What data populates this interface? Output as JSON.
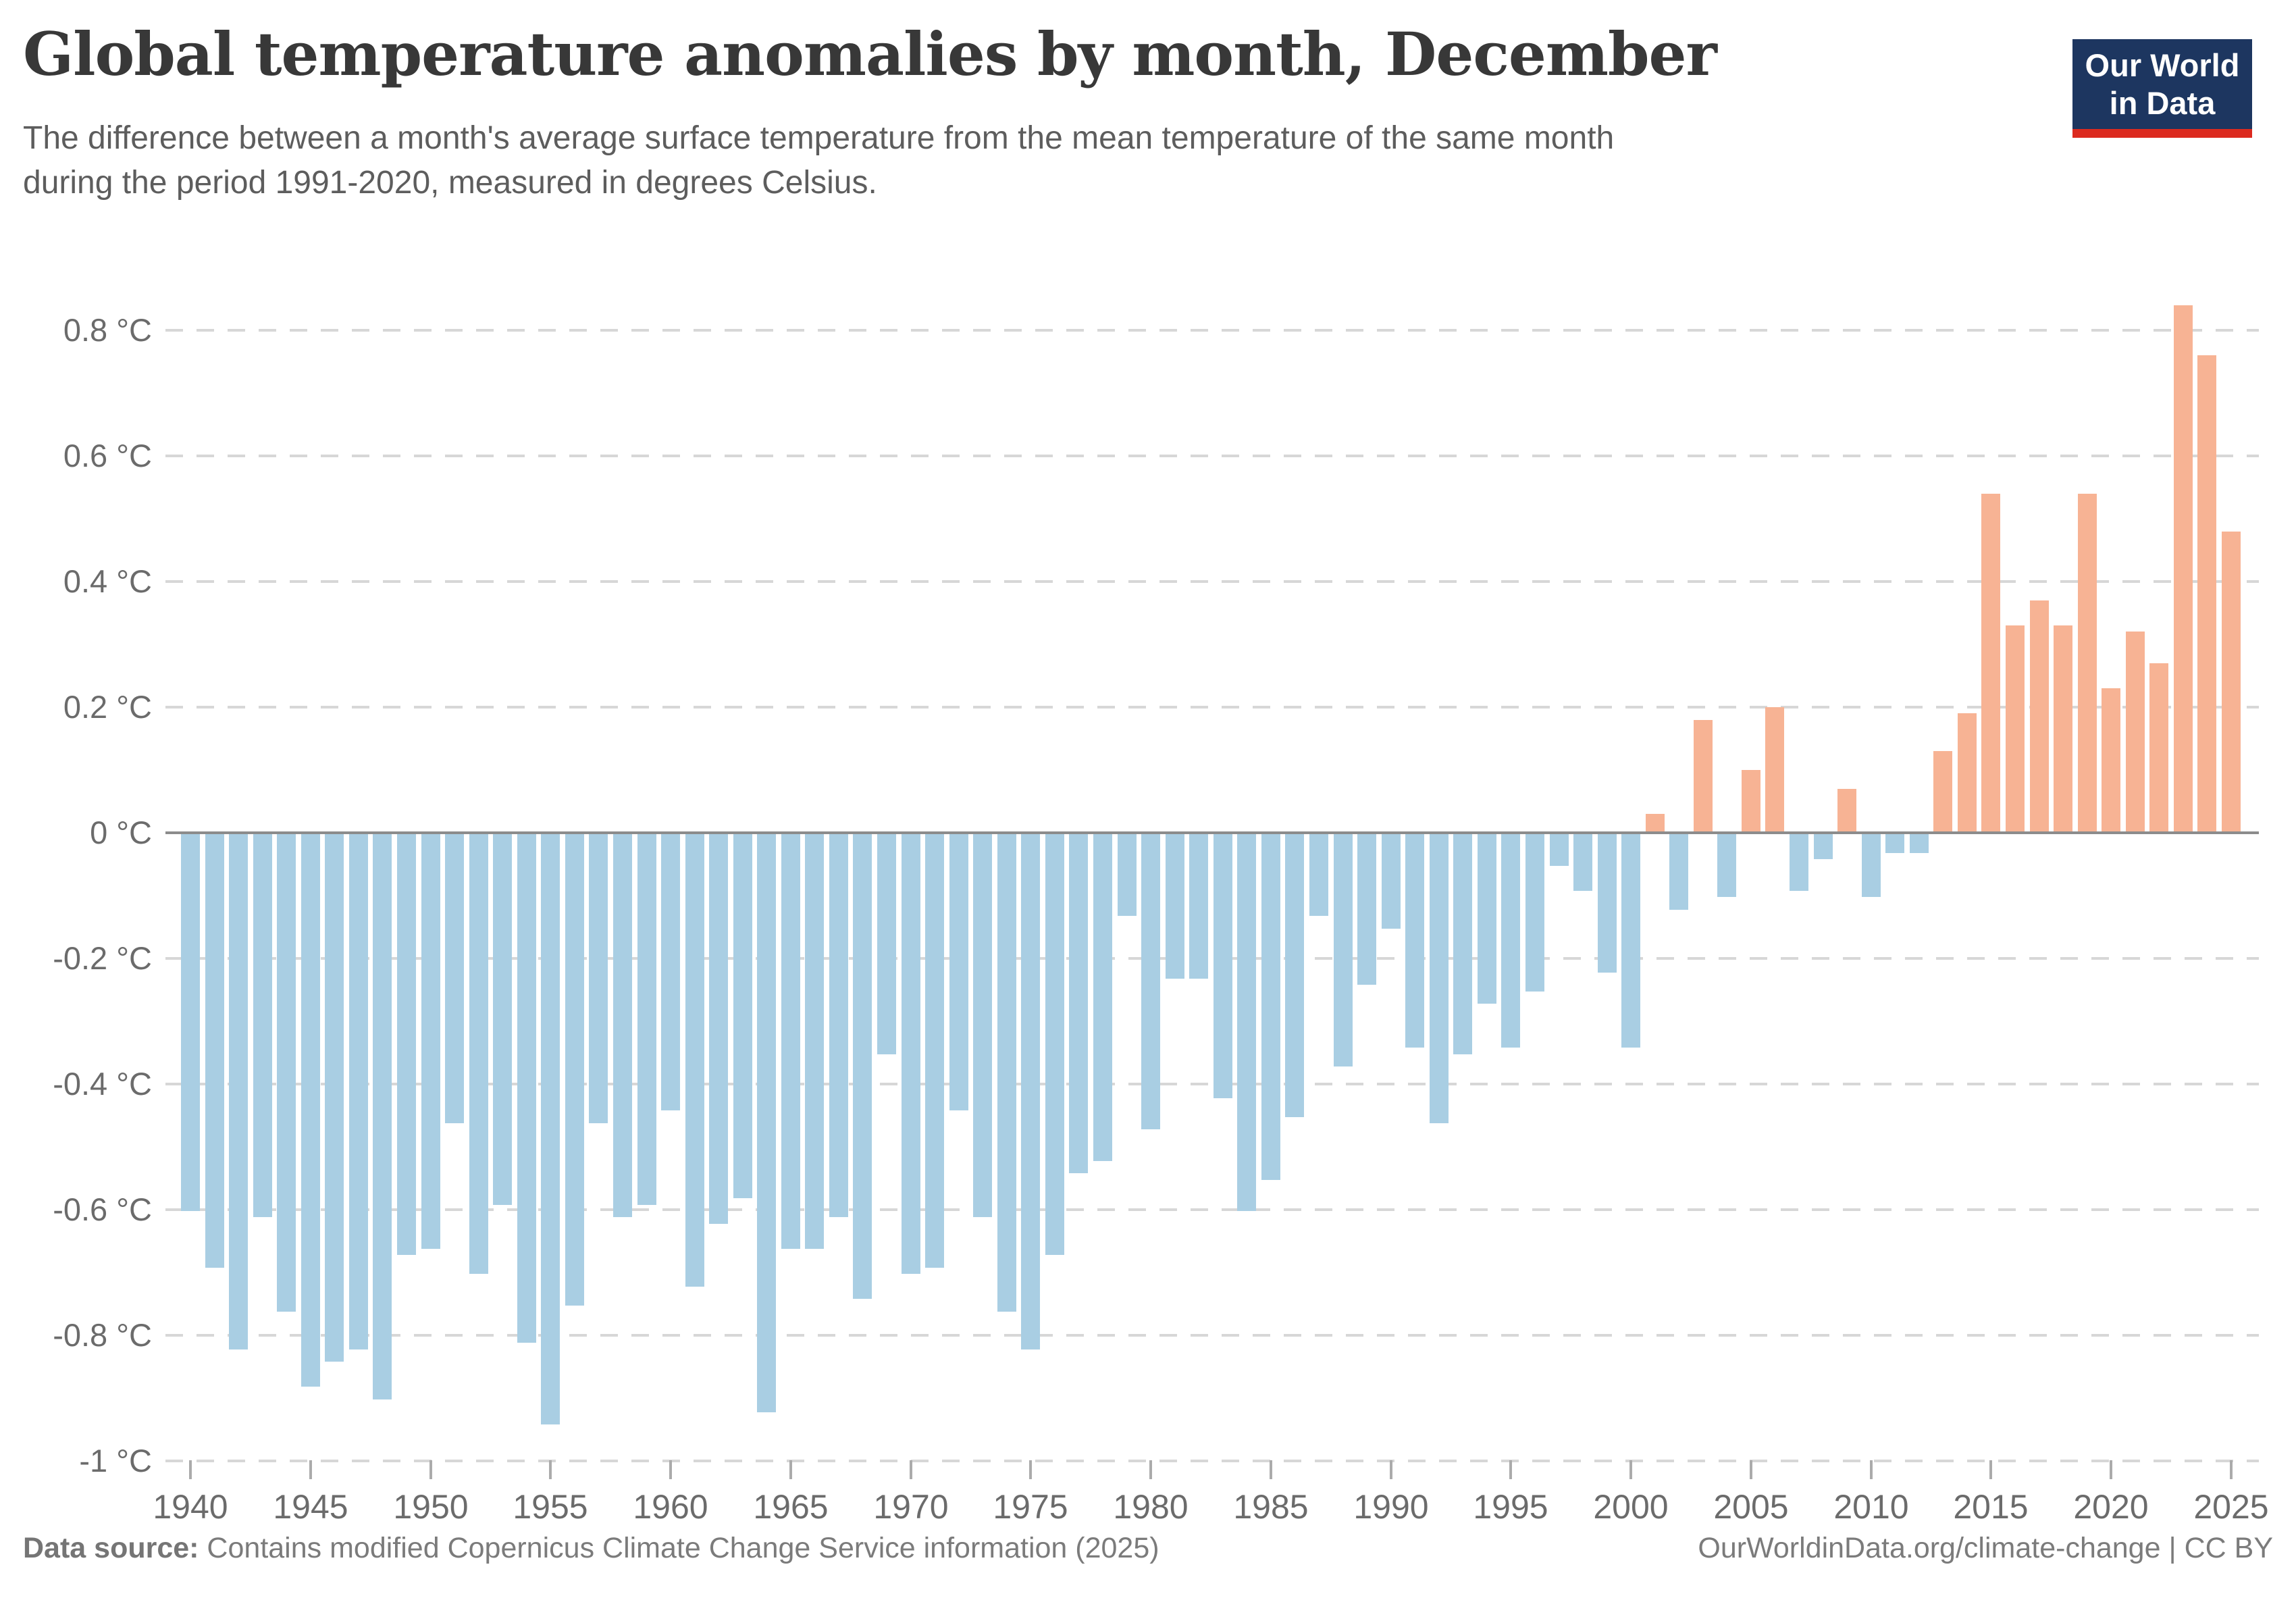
{
  "header": {
    "title": "Global temperature anomalies by month, December",
    "subtitle_line1": "The difference between a month's average surface temperature from the mean temperature of the same month",
    "subtitle_line2": "during the period 1991-2020, measured in degrees Celsius."
  },
  "logo": {
    "line1": "Our World",
    "line2": "in Data"
  },
  "footer": {
    "source_label": "Data source:",
    "source_text": " Contains modified Copernicus Climate Change Service information (2025)",
    "link_text": "OurWorldinData.org/climate-change",
    "license_text": " | CC BY"
  },
  "colors": {
    "positive_bar": "#f7b394",
    "negative_bar": "#a9cee3",
    "zero_line": "#8c8c8c",
    "gridline": "#d7d7d7",
    "tick_label": "#6b6b6b",
    "logo_background": "#1d3660",
    "logo_accent": "#dc2a1f"
  },
  "chart_data": {
    "type": "bar",
    "title": "Global temperature anomalies by month, December",
    "unit": "°C",
    "xlabel": "",
    "ylabel": "",
    "ylim": [
      -1.0,
      0.9
    ],
    "grid": "dashed horizontal",
    "y_ticks": [
      {
        "value": 0.8,
        "label": "0.8 °C"
      },
      {
        "value": 0.6,
        "label": "0.6 °C"
      },
      {
        "value": 0.4,
        "label": "0.4 °C"
      },
      {
        "value": 0.2,
        "label": "0.2 °C"
      },
      {
        "value": 0,
        "label": "0 °C"
      },
      {
        "value": -0.2,
        "label": "-0.2 °C"
      },
      {
        "value": -0.4,
        "label": "-0.4 °C"
      },
      {
        "value": -0.6,
        "label": "-0.6 °C"
      },
      {
        "value": -0.8,
        "label": "-0.8 °C"
      },
      {
        "value": -1,
        "label": "-1 °C"
      }
    ],
    "x_tick_years": [
      1940,
      1945,
      1950,
      1955,
      1960,
      1965,
      1970,
      1975,
      1980,
      1985,
      1990,
      1995,
      2000,
      2005,
      2010,
      2015,
      2020,
      2025
    ],
    "points": [
      {
        "year": 1940,
        "value": -0.6
      },
      {
        "year": 1941,
        "value": -0.69
      },
      {
        "year": 1942,
        "value": -0.82
      },
      {
        "year": 1943,
        "value": -0.61
      },
      {
        "year": 1944,
        "value": -0.76
      },
      {
        "year": 1945,
        "value": -0.88
      },
      {
        "year": 1946,
        "value": -0.84
      },
      {
        "year": 1947,
        "value": -0.82
      },
      {
        "year": 1948,
        "value": -0.9
      },
      {
        "year": 1949,
        "value": -0.67
      },
      {
        "year": 1950,
        "value": -0.66
      },
      {
        "year": 1951,
        "value": -0.46
      },
      {
        "year": 1952,
        "value": -0.7
      },
      {
        "year": 1953,
        "value": -0.59
      },
      {
        "year": 1954,
        "value": -0.81
      },
      {
        "year": 1955,
        "value": -0.94
      },
      {
        "year": 1956,
        "value": -0.75
      },
      {
        "year": 1957,
        "value": -0.46
      },
      {
        "year": 1958,
        "value": -0.61
      },
      {
        "year": 1959,
        "value": -0.59
      },
      {
        "year": 1960,
        "value": -0.44
      },
      {
        "year": 1961,
        "value": -0.72
      },
      {
        "year": 1962,
        "value": -0.62
      },
      {
        "year": 1963,
        "value": -0.58
      },
      {
        "year": 1964,
        "value": -0.92
      },
      {
        "year": 1965,
        "value": -0.66
      },
      {
        "year": 1966,
        "value": -0.66
      },
      {
        "year": 1967,
        "value": -0.61
      },
      {
        "year": 1968,
        "value": -0.74
      },
      {
        "year": 1969,
        "value": -0.35
      },
      {
        "year": 1970,
        "value": -0.7
      },
      {
        "year": 1971,
        "value": -0.69
      },
      {
        "year": 1972,
        "value": -0.44
      },
      {
        "year": 1973,
        "value": -0.61
      },
      {
        "year": 1974,
        "value": -0.76
      },
      {
        "year": 1975,
        "value": -0.82
      },
      {
        "year": 1976,
        "value": -0.67
      },
      {
        "year": 1977,
        "value": -0.54
      },
      {
        "year": 1978,
        "value": -0.52
      },
      {
        "year": 1979,
        "value": -0.13
      },
      {
        "year": 1980,
        "value": -0.47
      },
      {
        "year": 1981,
        "value": -0.23
      },
      {
        "year": 1982,
        "value": -0.23
      },
      {
        "year": 1983,
        "value": -0.42
      },
      {
        "year": 1984,
        "value": -0.6
      },
      {
        "year": 1985,
        "value": -0.55
      },
      {
        "year": 1986,
        "value": -0.45
      },
      {
        "year": 1987,
        "value": -0.13
      },
      {
        "year": 1988,
        "value": -0.37
      },
      {
        "year": 1989,
        "value": -0.24
      },
      {
        "year": 1990,
        "value": -0.15
      },
      {
        "year": 1991,
        "value": -0.34
      },
      {
        "year": 1992,
        "value": -0.46
      },
      {
        "year": 1993,
        "value": -0.35
      },
      {
        "year": 1994,
        "value": -0.27
      },
      {
        "year": 1995,
        "value": -0.34
      },
      {
        "year": 1996,
        "value": -0.25
      },
      {
        "year": 1997,
        "value": -0.05
      },
      {
        "year": 1998,
        "value": -0.09
      },
      {
        "year": 1999,
        "value": -0.22
      },
      {
        "year": 2000,
        "value": -0.34
      },
      {
        "year": 2001,
        "value": 0.03
      },
      {
        "year": 2002,
        "value": -0.12
      },
      {
        "year": 2003,
        "value": 0.18
      },
      {
        "year": 2004,
        "value": -0.1
      },
      {
        "year": 2005,
        "value": 0.1
      },
      {
        "year": 2006,
        "value": 0.2
      },
      {
        "year": 2007,
        "value": -0.09
      },
      {
        "year": 2008,
        "value": -0.04
      },
      {
        "year": 2009,
        "value": 0.07
      },
      {
        "year": 2010,
        "value": -0.1
      },
      {
        "year": 2011,
        "value": -0.03
      },
      {
        "year": 2012,
        "value": -0.03
      },
      {
        "year": 2013,
        "value": 0.13
      },
      {
        "year": 2014,
        "value": 0.19
      },
      {
        "year": 2015,
        "value": 0.54
      },
      {
        "year": 2016,
        "value": 0.33
      },
      {
        "year": 2017,
        "value": 0.37
      },
      {
        "year": 2018,
        "value": 0.33
      },
      {
        "year": 2019,
        "value": 0.54
      },
      {
        "year": 2020,
        "value": 0.23
      },
      {
        "year": 2021,
        "value": 0.32
      },
      {
        "year": 2022,
        "value": 0.27
      },
      {
        "year": 2023,
        "value": 0.84
      },
      {
        "year": 2024,
        "value": 0.76
      },
      {
        "year": 2025,
        "value": 0.48
      }
    ]
  }
}
